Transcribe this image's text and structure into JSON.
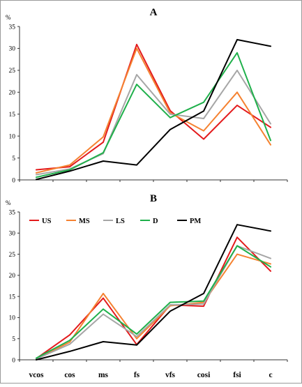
{
  "chart_data": [
    {
      "type": "line",
      "title": "A",
      "ylabel": "%",
      "ylim": [
        0,
        35
      ],
      "yticks": [
        0,
        5,
        10,
        15,
        20,
        25,
        30,
        35
      ],
      "categories": [
        "vcos",
        "cos",
        "ms",
        "fs",
        "vfs",
        "cosi",
        "fsi",
        "c"
      ],
      "grid": false,
      "series": [
        {
          "name": "US",
          "color": "#e31a1c",
          "values": [
            2.3,
            3.0,
            8.6,
            30.9,
            15.8,
            9.3,
            17.0,
            12.0
          ]
        },
        {
          "name": "MS",
          "color": "#f58231",
          "values": [
            1.6,
            3.4,
            9.8,
            30.0,
            15.3,
            11.2,
            20.0,
            8.0
          ]
        },
        {
          "name": "LS",
          "color": "#a6a6a6",
          "values": [
            1.2,
            2.5,
            6.0,
            24.0,
            15.0,
            14.0,
            25.0,
            12.8
          ]
        },
        {
          "name": "D",
          "color": "#1fb04b",
          "values": [
            0.6,
            2.3,
            6.2,
            21.8,
            14.2,
            17.7,
            29.0,
            9.0
          ]
        },
        {
          "name": "PM",
          "color": "#000000",
          "values": [
            0.1,
            2.0,
            4.3,
            3.4,
            11.5,
            15.7,
            32.0,
            30.5
          ]
        }
      ]
    },
    {
      "type": "line",
      "title": "B",
      "ylabel": "%",
      "ylim": [
        0,
        35
      ],
      "yticks": [
        0,
        5,
        10,
        15,
        20,
        25,
        30,
        35
      ],
      "categories": [
        "vcos",
        "cos",
        "ms",
        "fs",
        "vfs",
        "cosi",
        "fsi",
        "c"
      ],
      "legend": "top-left",
      "grid": false,
      "series": [
        {
          "name": "US",
          "color": "#e31a1c",
          "values": [
            0.3,
            5.9,
            14.6,
            3.6,
            13.0,
            12.7,
            29.0,
            21.0
          ]
        },
        {
          "name": "MS",
          "color": "#f58231",
          "values": [
            0.2,
            4.2,
            15.7,
            5.0,
            12.8,
            13.6,
            25.0,
            22.7
          ]
        },
        {
          "name": "LS",
          "color": "#a6a6a6",
          "values": [
            0.2,
            3.7,
            10.8,
            5.5,
            13.0,
            13.2,
            27.0,
            24.0
          ]
        },
        {
          "name": "D",
          "color": "#1fb04b",
          "values": [
            0.4,
            4.6,
            12.0,
            6.1,
            13.6,
            13.9,
            27.0,
            22.0
          ]
        },
        {
          "name": "PM",
          "color": "#000000",
          "values": [
            0.0,
            2.0,
            4.3,
            3.5,
            11.5,
            15.7,
            32.0,
            30.5
          ]
        }
      ]
    }
  ]
}
